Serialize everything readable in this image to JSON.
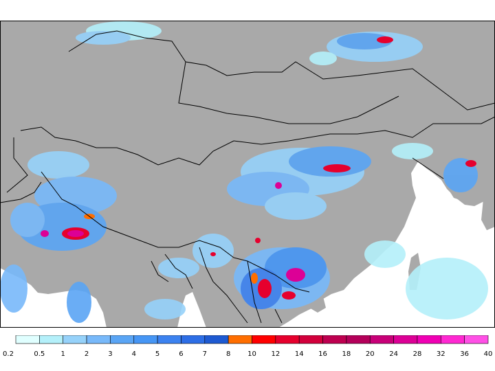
{
  "map": {
    "land_color": "#a9a9a9",
    "sea_color": "#ffffff",
    "border_color": "#000000"
  },
  "legend": {
    "labels": [
      "0.2",
      "0.5",
      "1",
      "2",
      "3",
      "4",
      "5",
      "6",
      "7",
      "8",
      "10",
      "12",
      "14",
      "16",
      "18",
      "20",
      "24",
      "28",
      "32",
      "36",
      "40"
    ],
    "colors": [
      "#e0ffff",
      "#b4f0fa",
      "#96d2fa",
      "#78b9fa",
      "#5aa5f5",
      "#4696f5",
      "#3c82f0",
      "#2d6ee6",
      "#1e5ad2",
      "#ff6e00",
      "#ff0000",
      "#e6002d",
      "#d2003c",
      "#be0050",
      "#b4005a",
      "#c80078",
      "#dc0096",
      "#f000b4",
      "#ff28d2",
      "#ff50e6"
    ]
  }
}
